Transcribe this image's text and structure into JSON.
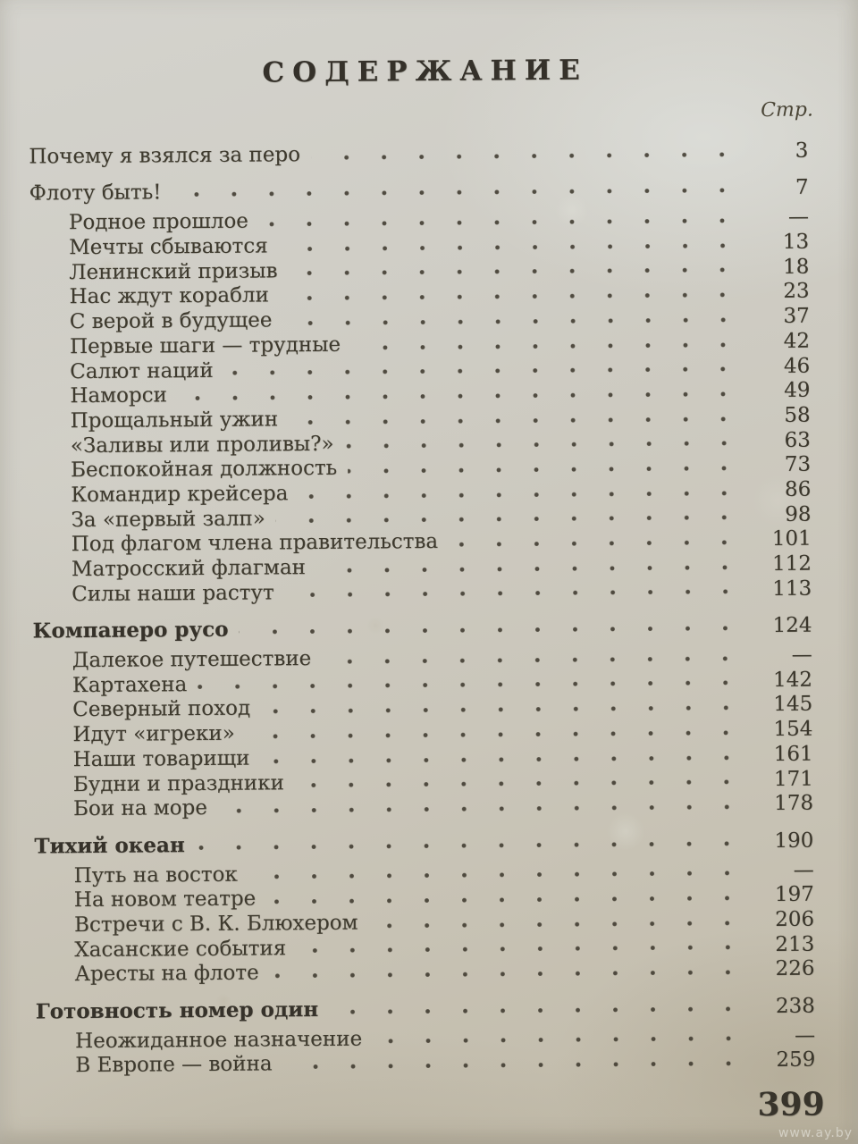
{
  "page": {
    "title": "СОДЕРЖАНИЕ",
    "column_header": "Стр.",
    "book_page_number": "399",
    "watermark": "www.ay.by",
    "colors": {
      "paper": "#cac6ba",
      "ink": "#3e3a2e"
    }
  },
  "toc": {
    "entries": [
      {
        "label": "Почему я взялся за перо",
        "page": "3",
        "level": 0,
        "bold": false
      },
      {
        "label": "Флоту быть!",
        "page": "7",
        "level": 0,
        "bold": false
      },
      {
        "label": "Родное прошлое",
        "page": "—",
        "level": 1,
        "bold": false
      },
      {
        "label": "Мечты сбываются",
        "page": "13",
        "level": 1,
        "bold": false
      },
      {
        "label": "Ленинский призыв",
        "page": "18",
        "level": 1,
        "bold": false
      },
      {
        "label": "Нас ждут корабли",
        "page": "23",
        "level": 1,
        "bold": false
      },
      {
        "label": "С верой в будущее",
        "page": "37",
        "level": 1,
        "bold": false
      },
      {
        "label": "Первые шаги — трудные",
        "page": "42",
        "level": 1,
        "bold": false
      },
      {
        "label": "Салют наций",
        "page": "46",
        "level": 1,
        "bold": false
      },
      {
        "label": "Наморси",
        "page": "49",
        "level": 1,
        "bold": false
      },
      {
        "label": "Прощальный ужин",
        "page": "58",
        "level": 1,
        "bold": false
      },
      {
        "label": "«Заливы или проливы?»",
        "page": "63",
        "level": 1,
        "bold": false
      },
      {
        "label": "Беспокойная должность",
        "page": "73",
        "level": 1,
        "bold": false
      },
      {
        "label": "Командир крейсера",
        "page": "86",
        "level": 1,
        "bold": false
      },
      {
        "label": "За «первый залп»",
        "page": "98",
        "level": 1,
        "bold": false
      },
      {
        "label": "Под флагом члена правительства",
        "page": "101",
        "level": 1,
        "bold": false
      },
      {
        "label": "Матросский флагман",
        "page": "112",
        "level": 1,
        "bold": false
      },
      {
        "label": "Силы наши растут",
        "page": "113",
        "level": 1,
        "bold": false
      },
      {
        "label": "Компанеро русо",
        "page": "124",
        "level": 0,
        "bold": true
      },
      {
        "label": "Далекое путешествие",
        "page": "—",
        "level": 1,
        "bold": false
      },
      {
        "label": "Картахена",
        "page": "142",
        "level": 1,
        "bold": false
      },
      {
        "label": "Северный поход",
        "page": "145",
        "level": 1,
        "bold": false
      },
      {
        "label": "Идут «игреки»",
        "page": "154",
        "level": 1,
        "bold": false
      },
      {
        "label": "Наши товарищи",
        "page": "161",
        "level": 1,
        "bold": false
      },
      {
        "label": "Будни и праздники",
        "page": "171",
        "level": 1,
        "bold": false
      },
      {
        "label": "Бои на море",
        "page": "178",
        "level": 1,
        "bold": false
      },
      {
        "label": "Тихий океан",
        "page": "190",
        "level": 0,
        "bold": true
      },
      {
        "label": "Путь на восток",
        "page": "—",
        "level": 1,
        "bold": false
      },
      {
        "label": "На новом театре",
        "page": "197",
        "level": 1,
        "bold": false
      },
      {
        "label": "Встречи с В. К. Блюхером",
        "page": "206",
        "level": 1,
        "bold": false
      },
      {
        "label": "Хасанские события",
        "page": "213",
        "level": 1,
        "bold": false
      },
      {
        "label": "Аресты на флоте",
        "page": "226",
        "level": 1,
        "bold": false
      },
      {
        "label": "Готовность номер один",
        "page": "238",
        "level": 0,
        "bold": true
      },
      {
        "label": "Неожиданное назначение",
        "page": "—",
        "level": 1,
        "bold": false
      },
      {
        "label": "В Европе — война",
        "page": "259",
        "level": 1,
        "bold": false
      }
    ]
  }
}
